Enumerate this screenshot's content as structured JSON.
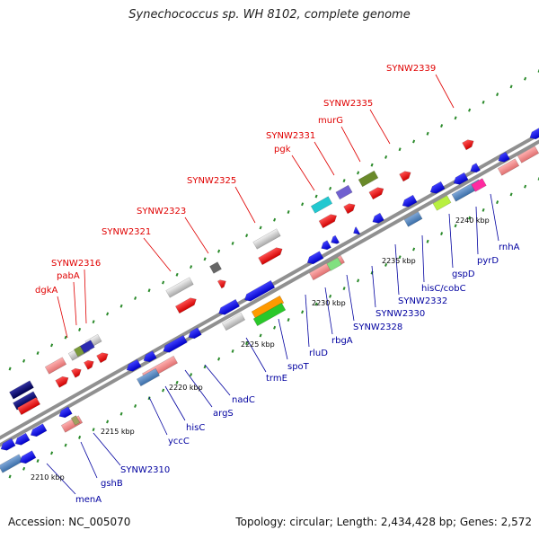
{
  "title": "Synechococcus sp. WH 8102, complete genome",
  "accession": "Accession: NC_005070",
  "topology": "Topology: circular; Length: 2,434,428 bp; Genes: 2,572",
  "colors": {
    "backbone": "#8a8a8a",
    "tick": "#2a8a2a",
    "forward_label": "#e00000",
    "reverse_label": "#0000a0"
  },
  "scale_labels": [
    "2210 kbp",
    "2215 kbp",
    "2220 kbp",
    "2225 kbp",
    "2230 kbp",
    "2235 kbp",
    "2240 kbp"
  ],
  "forward_labels": [
    "dgkA",
    "pabA",
    "SYNW2316",
    "SYNW2321",
    "SYNW2323",
    "SYNW2325",
    "pgk",
    "SYNW2331",
    "murG",
    "SYNW2335",
    "SYNW2339"
  ],
  "reverse_labels": [
    "menA",
    "gshB",
    "SYNW2310",
    "yccC",
    "hisC",
    "argS",
    "nadC",
    "trmE",
    "spoT",
    "rluD",
    "rbgA",
    "SYNW2328",
    "SYNW2330",
    "SYNW2332",
    "hisC/cobC",
    "gspD",
    "pyrD",
    "rnhA"
  ]
}
